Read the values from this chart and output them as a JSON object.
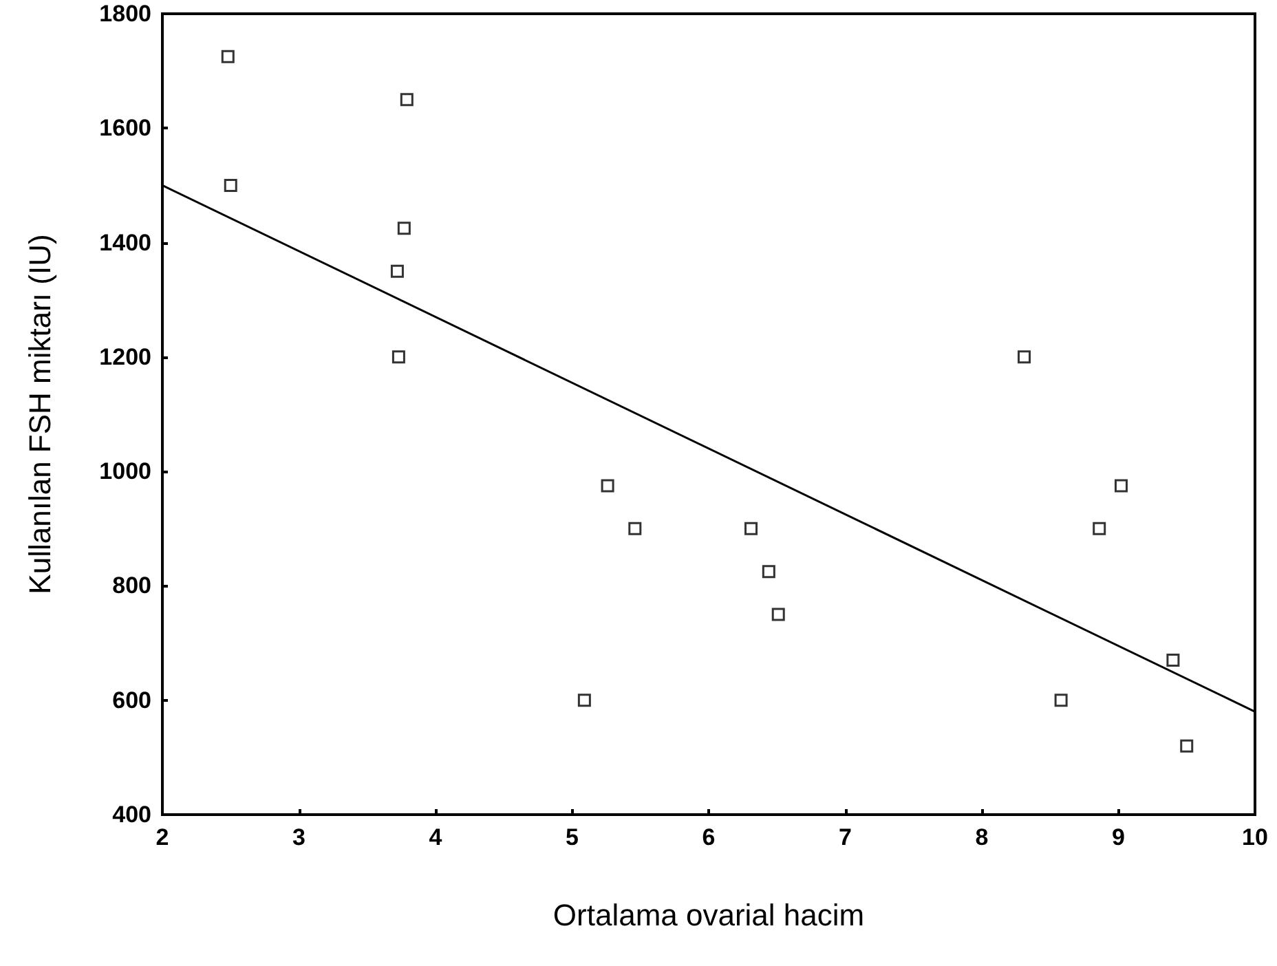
{
  "chart_data": {
    "type": "scatter",
    "xlabel": "Ortalama ovarial hacim",
    "ylabel": "Kullanılan FSH miktarı (IU)",
    "xlim": [
      2,
      10
    ],
    "xticks": [
      2,
      3,
      4,
      5,
      6,
      7,
      8,
      9,
      10
    ],
    "ylim": [
      400,
      1800
    ],
    "yticks": [
      400,
      600,
      800,
      1000,
      1200,
      1400,
      1600,
      1800
    ],
    "grid": false,
    "marker": "square",
    "series": [
      {
        "color": "#000000",
        "x": [
          2.48,
          2.5,
          3.79,
          3.77,
          3.72,
          3.73,
          5.26,
          5.46,
          5.09,
          6.31,
          6.44,
          6.51,
          8.31,
          8.86,
          9.02,
          9.4,
          8.58,
          9.5
        ],
        "values": [
          1725,
          1500,
          1650,
          1425,
          1350,
          1200,
          975,
          900,
          600,
          900,
          825,
          750,
          1200,
          900,
          975,
          670,
          600,
          520
        ]
      },
      {
        "type": "line",
        "color": "#000000",
        "marker": "none",
        "line_style": "solid",
        "x": [
          2,
          10
        ],
        "values": [
          1500,
          580
        ]
      }
    ]
  }
}
